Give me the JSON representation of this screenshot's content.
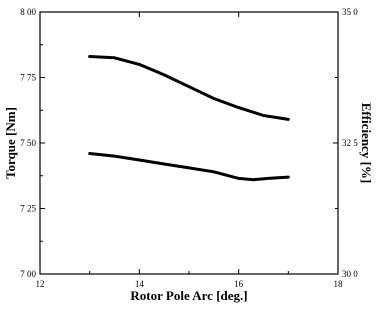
{
  "chart_data": {
    "type": "line",
    "xlabel": "Rotor Pole Arc [deg.]",
    "ylabel_left": "Torque [Nm]",
    "ylabel_right": "Efficiency [%]",
    "xlim": [
      12,
      18
    ],
    "ylim_left": [
      7.0,
      8.0
    ],
    "ylim_right": [
      30.0,
      35.0
    ],
    "x_ticks": [
      "12",
      "14",
      "16",
      "18"
    ],
    "y_left_ticks": [
      "7 00",
      "7 25",
      "7 50",
      "7 75",
      "8 00"
    ],
    "y_right_ticks": [
      "30 0",
      "32 5",
      "35 0"
    ],
    "series": [
      {
        "axis": "left",
        "x": [
          13.0,
          13.5,
          14.0,
          14.5,
          15.0,
          15.5,
          16.0,
          16.5,
          17.0
        ],
        "values": [
          7.83,
          7.825,
          7.8,
          7.76,
          7.715,
          7.67,
          7.635,
          7.605,
          7.59
        ]
      },
      {
        "axis": "left",
        "x": [
          13.0,
          13.5,
          14.0,
          14.5,
          15.0,
          15.5,
          16.0,
          16.3,
          16.6,
          17.0
        ],
        "values": [
          7.46,
          7.45,
          7.435,
          7.42,
          7.405,
          7.39,
          7.365,
          7.36,
          7.365,
          7.37
        ]
      }
    ]
  }
}
